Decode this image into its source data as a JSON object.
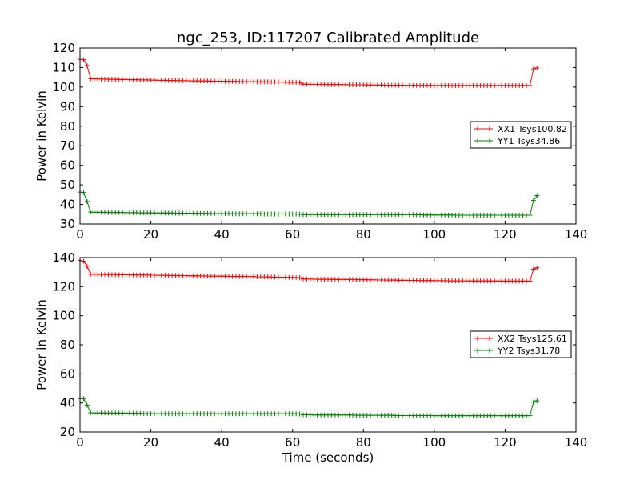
{
  "title": "ngc_253, ID:117207 Calibrated Amplitude",
  "chart_data": [
    {
      "type": "line",
      "xlabel": "",
      "ylabel": "Power in Kelvin",
      "xlim": [
        0,
        140
      ],
      "ylim": [
        30,
        120
      ],
      "xticks": [
        0,
        20,
        40,
        60,
        80,
        100,
        120,
        140
      ],
      "yticks": [
        30,
        40,
        50,
        60,
        70,
        80,
        90,
        100,
        110,
        120
      ],
      "legend_position": "center-right",
      "series": [
        {
          "name": "XX1 Tsys100.82",
          "color": "#ff0000",
          "marker": "+",
          "x": [
            0,
            1,
            2,
            3,
            4,
            5,
            6,
            7,
            8,
            9,
            10,
            11,
            12,
            13,
            14,
            15,
            16,
            17,
            18,
            19,
            20,
            21,
            22,
            23,
            24,
            25,
            26,
            27,
            28,
            29,
            30,
            31,
            32,
            33,
            34,
            35,
            36,
            37,
            38,
            39,
            40,
            41,
            42,
            43,
            44,
            45,
            46,
            47,
            48,
            49,
            50,
            51,
            52,
            53,
            54,
            55,
            56,
            57,
            58,
            59,
            60,
            61,
            62,
            63,
            64,
            65,
            66,
            67,
            68,
            69,
            70,
            71,
            72,
            73,
            74,
            75,
            76,
            77,
            78,
            79,
            80,
            81,
            82,
            83,
            84,
            85,
            86,
            87,
            88,
            89,
            90,
            91,
            92,
            93,
            94,
            95,
            96,
            97,
            98,
            99,
            100,
            101,
            102,
            103,
            104,
            105,
            106,
            107,
            108,
            109,
            110,
            111,
            112,
            113,
            114,
            115,
            116,
            117,
            118,
            119,
            120,
            121,
            122,
            123,
            124,
            125,
            126,
            127,
            128,
            129
          ],
          "y": [
            114.2,
            114.0,
            111.0,
            104.3,
            104.2,
            104.2,
            104.1,
            104.1,
            104.0,
            104.0,
            104.0,
            103.9,
            103.9,
            103.9,
            103.8,
            103.8,
            103.8,
            103.7,
            103.7,
            103.7,
            103.6,
            103.6,
            103.5,
            103.5,
            103.5,
            103.4,
            103.4,
            103.4,
            103.3,
            103.3,
            103.3,
            103.2,
            103.2,
            103.2,
            103.1,
            103.1,
            103.1,
            103.0,
            103.0,
            103.0,
            103.0,
            102.9,
            102.9,
            102.9,
            102.9,
            102.8,
            102.8,
            102.8,
            102.8,
            102.7,
            102.7,
            102.7,
            102.7,
            102.7,
            102.6,
            102.6,
            102.6,
            102.6,
            102.5,
            102.5,
            102.5,
            102.4,
            102.4,
            101.5,
            101.5,
            101.4,
            101.4,
            101.4,
            101.4,
            101.4,
            101.3,
            101.3,
            101.3,
            101.3,
            101.3,
            101.3,
            101.2,
            101.2,
            101.2,
            101.2,
            101.2,
            101.1,
            101.1,
            101.1,
            101.1,
            101.1,
            101.0,
            101.0,
            101.0,
            101.0,
            101.0,
            101.0,
            100.9,
            100.9,
            100.9,
            100.9,
            100.9,
            100.9,
            100.9,
            100.9,
            100.8,
            100.8,
            100.8,
            100.8,
            100.8,
            100.8,
            100.8,
            100.8,
            100.8,
            100.8,
            100.8,
            100.8,
            100.8,
            100.8,
            100.8,
            100.8,
            100.8,
            100.8,
            100.8,
            100.8,
            100.8,
            100.8,
            100.8,
            100.8,
            100.8,
            100.8,
            100.8,
            100.8,
            109.3,
            109.8
          ]
        },
        {
          "name": "YY1 Tsys34.86",
          "color": "#008000",
          "marker": "+",
          "x": [
            0,
            1,
            2,
            3,
            4,
            5,
            6,
            7,
            8,
            9,
            10,
            11,
            12,
            13,
            14,
            15,
            16,
            17,
            18,
            19,
            20,
            21,
            22,
            23,
            24,
            25,
            26,
            27,
            28,
            29,
            30,
            31,
            32,
            33,
            34,
            35,
            36,
            37,
            38,
            39,
            40,
            41,
            42,
            43,
            44,
            45,
            46,
            47,
            48,
            49,
            50,
            51,
            52,
            53,
            54,
            55,
            56,
            57,
            58,
            59,
            60,
            61,
            62,
            63,
            64,
            65,
            66,
            67,
            68,
            69,
            70,
            71,
            72,
            73,
            74,
            75,
            76,
            77,
            78,
            79,
            80,
            81,
            82,
            83,
            84,
            85,
            86,
            87,
            88,
            89,
            90,
            91,
            92,
            93,
            94,
            95,
            96,
            97,
            98,
            99,
            100,
            101,
            102,
            103,
            104,
            105,
            106,
            107,
            108,
            109,
            110,
            111,
            112,
            113,
            114,
            115,
            116,
            117,
            118,
            119,
            120,
            121,
            122,
            123,
            124,
            125,
            126,
            127,
            128,
            129
          ],
          "y": [
            46.3,
            46.1,
            41.5,
            36.1,
            36.0,
            36.0,
            36.0,
            36.0,
            35.9,
            35.9,
            35.9,
            35.9,
            35.9,
            35.8,
            35.8,
            35.8,
            35.8,
            35.7,
            35.7,
            35.7,
            35.7,
            35.6,
            35.6,
            35.6,
            35.6,
            35.6,
            35.6,
            35.5,
            35.5,
            35.5,
            35.5,
            35.5,
            35.5,
            35.4,
            35.4,
            35.4,
            35.4,
            35.3,
            35.3,
            35.3,
            35.3,
            35.3,
            35.3,
            35.2,
            35.2,
            35.2,
            35.2,
            35.2,
            35.2,
            35.2,
            35.2,
            35.2,
            35.1,
            35.1,
            35.1,
            35.1,
            35.1,
            35.1,
            35.1,
            35.1,
            35.1,
            35.1,
            35.0,
            34.8,
            34.8,
            34.8,
            34.8,
            34.8,
            34.8,
            34.8,
            34.8,
            34.8,
            34.8,
            34.8,
            34.8,
            34.8,
            34.8,
            34.8,
            34.8,
            34.8,
            34.8,
            34.8,
            34.8,
            34.8,
            34.8,
            34.8,
            34.8,
            34.8,
            34.8,
            34.8,
            34.8,
            34.8,
            34.8,
            34.8,
            34.8,
            34.7,
            34.7,
            34.6,
            34.6,
            34.6,
            34.6,
            34.6,
            34.6,
            34.6,
            34.6,
            34.6,
            34.5,
            34.5,
            34.5,
            34.5,
            34.5,
            34.5,
            34.5,
            34.5,
            34.5,
            34.5,
            34.5,
            34.5,
            34.5,
            34.5,
            34.5,
            34.5,
            34.5,
            34.5,
            34.5,
            34.5,
            34.5,
            34.5,
            42.0,
            44.5
          ]
        }
      ]
    },
    {
      "type": "line",
      "xlabel": "Time (seconds)",
      "ylabel": "Power in Kelvin",
      "xlim": [
        0,
        140
      ],
      "ylim": [
        20,
        140
      ],
      "xticks": [
        0,
        20,
        40,
        60,
        80,
        100,
        120,
        140
      ],
      "yticks": [
        20,
        40,
        60,
        80,
        100,
        120,
        140
      ],
      "legend_position": "center-right",
      "series": [
        {
          "name": "XX2 Tsys125.61",
          "color": "#ff0000",
          "marker": "+",
          "x": [
            0,
            1,
            2,
            3,
            4,
            5,
            6,
            7,
            8,
            9,
            10,
            11,
            12,
            13,
            14,
            15,
            16,
            17,
            18,
            19,
            20,
            21,
            22,
            23,
            24,
            25,
            26,
            27,
            28,
            29,
            30,
            31,
            32,
            33,
            34,
            35,
            36,
            37,
            38,
            39,
            40,
            41,
            42,
            43,
            44,
            45,
            46,
            47,
            48,
            49,
            50,
            51,
            52,
            53,
            54,
            55,
            56,
            57,
            58,
            59,
            60,
            61,
            62,
            63,
            64,
            65,
            66,
            67,
            68,
            69,
            70,
            71,
            72,
            73,
            74,
            75,
            76,
            77,
            78,
            79,
            80,
            81,
            82,
            83,
            84,
            85,
            86,
            87,
            88,
            89,
            90,
            91,
            92,
            93,
            94,
            95,
            96,
            97,
            98,
            99,
            100,
            101,
            102,
            103,
            104,
            105,
            106,
            107,
            108,
            109,
            110,
            111,
            112,
            113,
            114,
            115,
            116,
            117,
            118,
            119,
            120,
            121,
            122,
            123,
            124,
            125,
            126,
            127,
            128,
            129
          ],
          "y": [
            138.0,
            137.5,
            134.0,
            128.6,
            128.5,
            128.5,
            128.4,
            128.4,
            128.3,
            128.3,
            128.3,
            128.2,
            128.2,
            128.2,
            128.1,
            128.1,
            128.1,
            128.0,
            128.0,
            128.0,
            127.9,
            127.9,
            127.8,
            127.8,
            127.8,
            127.7,
            127.7,
            127.7,
            127.6,
            127.6,
            127.6,
            127.5,
            127.5,
            127.5,
            127.4,
            127.4,
            127.3,
            127.3,
            127.3,
            127.2,
            127.2,
            127.2,
            127.1,
            127.1,
            127.1,
            127.0,
            127.0,
            127.0,
            126.9,
            126.9,
            126.8,
            126.8,
            126.7,
            126.7,
            126.6,
            126.6,
            126.5,
            126.5,
            126.4,
            126.4,
            126.3,
            126.3,
            126.2,
            125.3,
            125.2,
            125.2,
            125.2,
            125.1,
            125.1,
            125.1,
            125.0,
            125.0,
            125.0,
            125.0,
            124.9,
            124.9,
            124.9,
            124.9,
            124.8,
            124.8,
            124.8,
            124.7,
            124.7,
            124.7,
            124.6,
            124.6,
            124.6,
            124.5,
            124.5,
            124.5,
            124.4,
            124.4,
            124.4,
            124.3,
            124.3,
            124.3,
            124.2,
            124.2,
            124.2,
            124.2,
            124.1,
            124.1,
            124.1,
            124.1,
            124.0,
            124.0,
            124.0,
            124.0,
            124.0,
            124.0,
            123.9,
            123.9,
            123.9,
            123.9,
            123.9,
            123.9,
            123.9,
            123.9,
            123.9,
            123.8,
            123.8,
            123.8,
            123.8,
            123.8,
            123.8,
            123.8,
            123.8,
            123.8,
            132.0,
            133.0
          ]
        },
        {
          "name": "YY2 Tsys31.78",
          "color": "#008000",
          "marker": "+",
          "x": [
            0,
            1,
            2,
            3,
            4,
            5,
            6,
            7,
            8,
            9,
            10,
            11,
            12,
            13,
            14,
            15,
            16,
            17,
            18,
            19,
            20,
            21,
            22,
            23,
            24,
            25,
            26,
            27,
            28,
            29,
            30,
            31,
            32,
            33,
            34,
            35,
            36,
            37,
            38,
            39,
            40,
            41,
            42,
            43,
            44,
            45,
            46,
            47,
            48,
            49,
            50,
            51,
            52,
            53,
            54,
            55,
            56,
            57,
            58,
            59,
            60,
            61,
            62,
            63,
            64,
            65,
            66,
            67,
            68,
            69,
            70,
            71,
            72,
            73,
            74,
            75,
            76,
            77,
            78,
            79,
            80,
            81,
            82,
            83,
            84,
            85,
            86,
            87,
            88,
            89,
            90,
            91,
            92,
            93,
            94,
            95,
            96,
            97,
            98,
            99,
            100,
            101,
            102,
            103,
            104,
            105,
            106,
            107,
            108,
            109,
            110,
            111,
            112,
            113,
            114,
            115,
            116,
            117,
            118,
            119,
            120,
            121,
            122,
            123,
            124,
            125,
            126,
            127,
            128,
            129
          ],
          "y": [
            43.0,
            43.0,
            38.5,
            33.2,
            33.1,
            33.1,
            33.1,
            33.1,
            33.0,
            33.0,
            33.0,
            33.0,
            33.0,
            33.0,
            33.0,
            32.9,
            32.9,
            32.9,
            32.6,
            32.6,
            32.6,
            32.5,
            32.5,
            32.5,
            32.5,
            32.5,
            32.5,
            32.5,
            32.5,
            32.5,
            32.5,
            32.5,
            32.5,
            32.5,
            32.5,
            32.5,
            32.5,
            32.5,
            32.5,
            32.5,
            32.5,
            32.5,
            32.5,
            32.5,
            32.5,
            32.5,
            32.5,
            32.5,
            32.5,
            32.5,
            32.5,
            32.5,
            32.5,
            32.5,
            32.5,
            32.5,
            32.5,
            32.5,
            32.5,
            32.5,
            32.5,
            32.5,
            32.4,
            31.8,
            31.8,
            31.8,
            31.7,
            31.7,
            31.7,
            31.7,
            31.7,
            31.7,
            31.7,
            31.7,
            31.7,
            31.7,
            31.7,
            31.7,
            31.5,
            31.5,
            31.5,
            31.5,
            31.5,
            31.5,
            31.5,
            31.5,
            31.5,
            31.5,
            31.5,
            31.3,
            31.3,
            31.3,
            31.3,
            31.3,
            31.3,
            31.3,
            31.3,
            31.3,
            31.3,
            31.3,
            31.2,
            31.2,
            31.2,
            31.2,
            31.2,
            31.2,
            31.2,
            31.2,
            31.2,
            31.2,
            31.2,
            31.2,
            31.2,
            31.2,
            31.2,
            31.2,
            31.2,
            31.2,
            31.2,
            31.2,
            31.2,
            31.2,
            31.2,
            31.2,
            31.2,
            31.2,
            31.2,
            31.2,
            40.5,
            41.5
          ]
        }
      ]
    }
  ]
}
